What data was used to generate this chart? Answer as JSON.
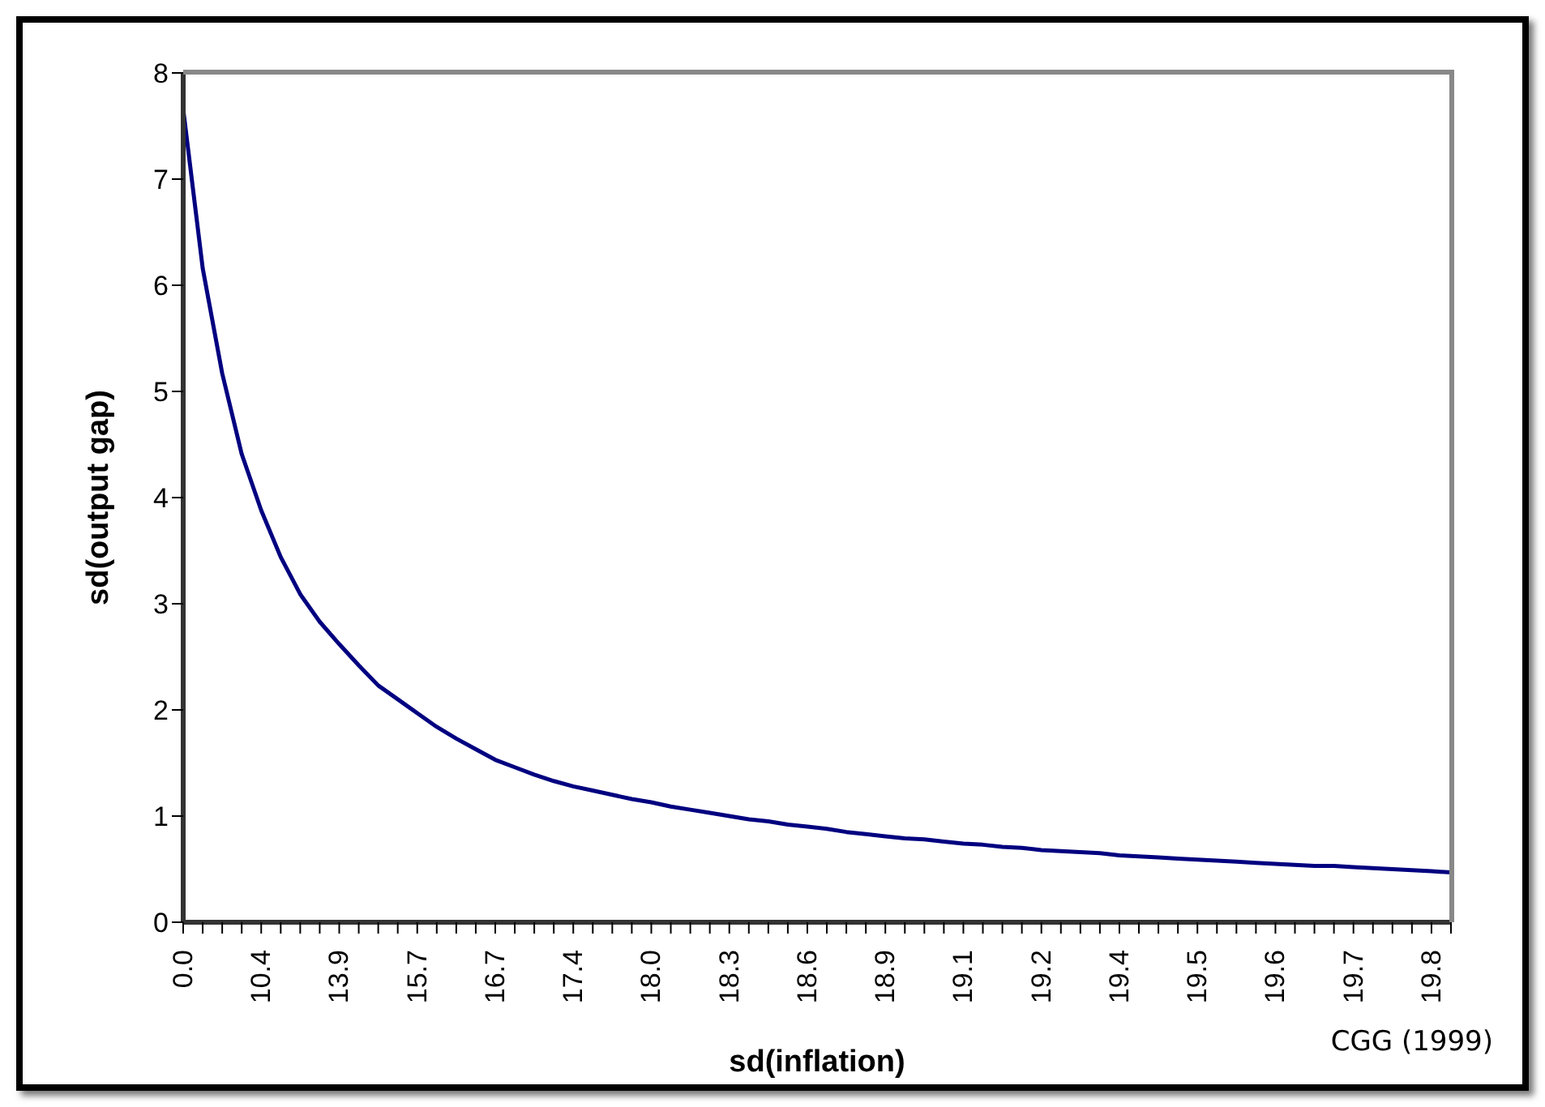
{
  "chart_data": {
    "type": "line",
    "xlabel": "sd(inflation)",
    "ylabel": "sd(output gap)",
    "annotations": [
      "CGG (1999)"
    ],
    "categories": [
      "0.0",
      null,
      null,
      null,
      "10.4",
      null,
      null,
      null,
      "13.9",
      null,
      null,
      null,
      "15.7",
      null,
      null,
      null,
      "16.7",
      null,
      null,
      null,
      "17.4",
      null,
      null,
      null,
      "18.0",
      null,
      null,
      null,
      "18.3",
      null,
      null,
      null,
      "18.6",
      null,
      null,
      null,
      "18.9",
      null,
      null,
      null,
      "19.1",
      null,
      null,
      null,
      "19.2",
      null,
      null,
      null,
      "19.4",
      null,
      null,
      null,
      "19.5",
      null,
      null,
      null,
      "19.6",
      null,
      null,
      null,
      "19.7",
      null,
      null,
      null,
      "19.8",
      null
    ],
    "series": [
      {
        "color": "#000080",
        "values": [
          7.66,
          6.16,
          5.17,
          4.41,
          3.88,
          3.44,
          3.09,
          2.83,
          2.62,
          2.42,
          2.23,
          2.1,
          1.97,
          1.84,
          1.73,
          1.63,
          1.53,
          1.46,
          1.39,
          1.33,
          1.28,
          1.24,
          1.2,
          1.16,
          1.13,
          1.09,
          1.06,
          1.03,
          1.0,
          0.97,
          0.95,
          0.92,
          0.9,
          0.88,
          0.85,
          0.83,
          0.81,
          0.79,
          0.78,
          0.76,
          0.74,
          0.73,
          0.71,
          0.7,
          0.68,
          0.67,
          0.66,
          0.65,
          0.63,
          0.62,
          0.61,
          0.6,
          0.59,
          0.58,
          0.57,
          0.56,
          0.55,
          0.54,
          0.53,
          0.53,
          0.52,
          0.51,
          0.5,
          0.49,
          0.48,
          0.47
        ]
      }
    ],
    "ylim": [
      0,
      8
    ],
    "yticks": [
      0,
      1,
      2,
      3,
      4,
      5,
      6,
      7,
      8
    ],
    "marker": "none",
    "line_style": "solid"
  }
}
